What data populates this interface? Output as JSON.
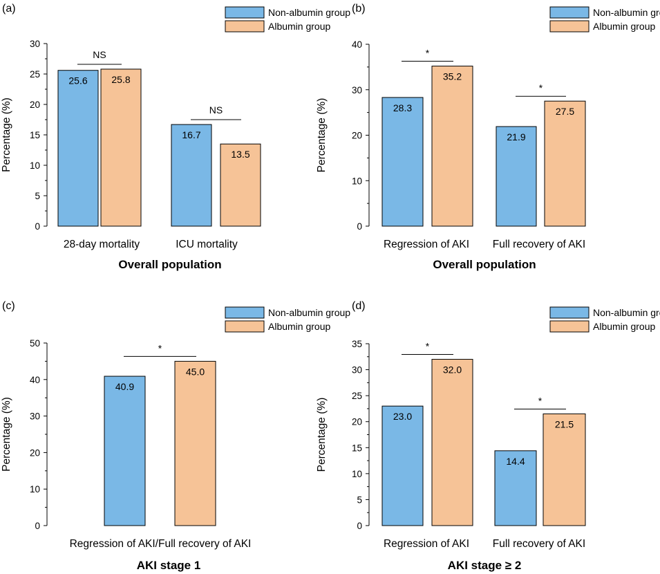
{
  "colors": {
    "non_albumin": "#7ab8e6",
    "albumin": "#f6c397"
  },
  "legend": {
    "series_a": "Non-albumin group",
    "series_b": "Albumin group"
  },
  "chart_data": [
    {
      "panel": "(a)",
      "type": "bar",
      "subtitle": "Overall population",
      "ylabel": "Percentage (%)",
      "ylim": [
        0,
        30
      ],
      "yticks": [
        0,
        5,
        10,
        15,
        20,
        25,
        30
      ],
      "categories": [
        "28-day mortality",
        "ICU mortality"
      ],
      "series": [
        {
          "name": "Non-albumin group",
          "values": [
            25.6,
            16.7
          ],
          "labels": [
            "25.6",
            "16.7"
          ]
        },
        {
          "name": "Albumin group",
          "values": [
            25.8,
            13.5
          ],
          "labels": [
            "25.8",
            "13.5"
          ]
        }
      ],
      "significance": [
        "NS",
        "NS"
      ],
      "legend_position": "top-right"
    },
    {
      "panel": "(b)",
      "type": "bar",
      "subtitle": "Overall population",
      "ylabel": "Percentage (%)",
      "ylim": [
        0,
        40
      ],
      "yticks": [
        0,
        10,
        20,
        30,
        40
      ],
      "categories": [
        "Regression of AKI",
        "Full recovery of AKI"
      ],
      "series": [
        {
          "name": "Non-albumin group",
          "values": [
            28.3,
            21.9
          ],
          "labels": [
            "28.3",
            "21.9"
          ]
        },
        {
          "name": "Albumin group",
          "values": [
            35.2,
            27.5
          ],
          "labels": [
            "35.2",
            "27.5"
          ]
        }
      ],
      "significance": [
        "*",
        "*"
      ],
      "legend_position": "top-right"
    },
    {
      "panel": "(c)",
      "type": "bar",
      "subtitle": "AKI stage 1",
      "ylabel": "Percentage (%)",
      "ylim": [
        0,
        50
      ],
      "yticks": [
        0,
        10,
        20,
        30,
        40,
        50
      ],
      "categories": [
        "Regression of AKI/Full recovery of AKI"
      ],
      "series": [
        {
          "name": "Non-albumin group",
          "values": [
            40.9
          ],
          "labels": [
            "40.9"
          ]
        },
        {
          "name": "Albumin group",
          "values": [
            45.0
          ],
          "labels": [
            "45.0"
          ]
        }
      ],
      "significance": [
        "*"
      ],
      "legend_position": "top-right"
    },
    {
      "panel": "(d)",
      "type": "bar",
      "subtitle": "AKI stage ≥ 2",
      "ylabel": "Percentage (%)",
      "ylim": [
        0,
        35
      ],
      "yticks": [
        0,
        5,
        10,
        15,
        20,
        25,
        30,
        35
      ],
      "categories": [
        "Regression of AKI",
        "Full recovery of AKI"
      ],
      "series": [
        {
          "name": "Non-albumin group",
          "values": [
            23.0,
            14.4
          ],
          "labels": [
            "23.0",
            "14.4"
          ]
        },
        {
          "name": "Albumin group",
          "values": [
            32.0,
            21.5
          ],
          "labels": [
            "32.0",
            "21.5"
          ]
        }
      ],
      "significance": [
        "*",
        "*"
      ],
      "legend_position": "top-right"
    }
  ]
}
